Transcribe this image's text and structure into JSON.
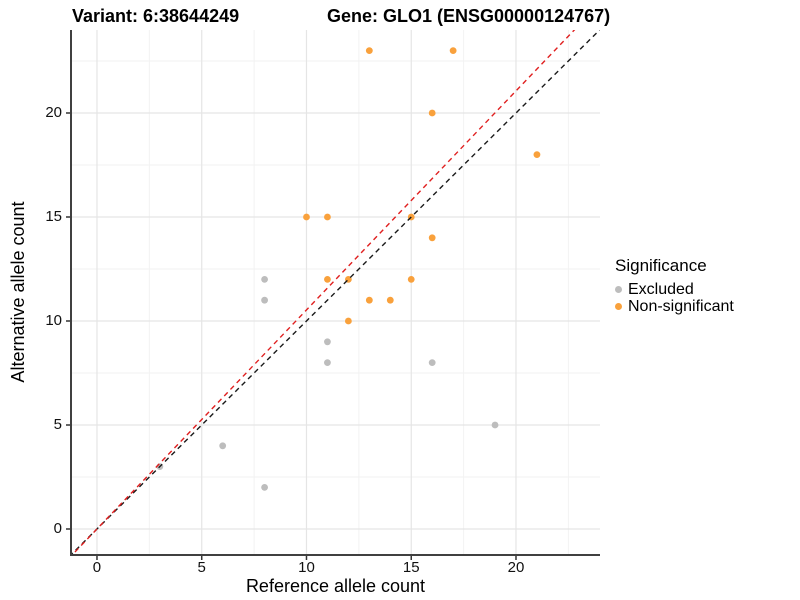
{
  "chart_data": {
    "type": "scatter",
    "title_left": "Variant: 6:38644249",
    "title_right": "Gene: GLO1 (ENSG00000124767)",
    "xlabel": "Reference allele count",
    "ylabel": "Alternative allele count",
    "xlim": [
      -1.24,
      24.01
    ],
    "ylim": [
      -1.25,
      23.99
    ],
    "x_ticks": [
      0,
      5,
      10,
      15,
      20
    ],
    "y_ticks": [
      0,
      5,
      10,
      15,
      20
    ],
    "x_minor_ticks": [
      2.5,
      7.5,
      12.5,
      17.5,
      22.5
    ],
    "y_minor_ticks": [
      2.5,
      7.5,
      12.5,
      17.5,
      22.5
    ],
    "grid": true,
    "legend_position": "right",
    "legend_title": "Significance",
    "series": [
      {
        "name": "Excluded",
        "color": "#BDBDBD",
        "marker": "circle",
        "points": [
          [
            3,
            3
          ],
          [
            6,
            4
          ],
          [
            8,
            2
          ],
          [
            8,
            11
          ],
          [
            8,
            12
          ],
          [
            11,
            8
          ],
          [
            11,
            9
          ],
          [
            16,
            8
          ],
          [
            19,
            5
          ]
        ]
      },
      {
        "name": "Non-significant",
        "color": "#F9A13C",
        "marker": "circle",
        "points": [
          [
            10,
            15
          ],
          [
            11,
            12
          ],
          [
            11,
            15
          ],
          [
            12,
            10
          ],
          [
            12,
            12
          ],
          [
            13,
            11
          ],
          [
            13,
            23
          ],
          [
            14,
            11
          ],
          [
            15,
            12
          ],
          [
            15,
            15
          ],
          [
            16,
            14
          ],
          [
            16,
            20
          ],
          [
            17,
            23
          ],
          [
            21,
            18
          ]
        ]
      }
    ],
    "lines": [
      {
        "name": "identity-line",
        "slope": 1.0,
        "intercept": 0,
        "color": "#1A1A1A",
        "style": "dashed"
      },
      {
        "name": "regression-line",
        "slope": 1.053,
        "intercept": 0,
        "color": "#E02020",
        "style": "dashed"
      }
    ],
    "style": {
      "major_grid_color": "#E5E5E5",
      "minor_grid_color": "#F2F2F2",
      "axis_line_color": "#404040",
      "tick_mark_color": "#333333",
      "point_radius": 3.4
    }
  }
}
